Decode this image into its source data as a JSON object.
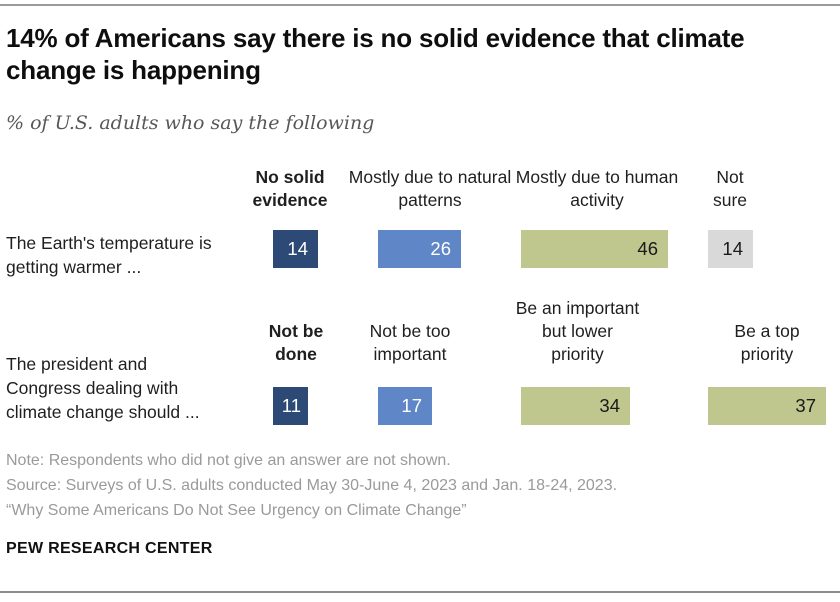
{
  "header": {
    "title": "14% of Americans say there is no solid evidence that climate change is happening",
    "subtitle": "% of U.S. adults who say the following"
  },
  "chart_data": {
    "type": "bar",
    "unit": "percent of U.S. adults",
    "layout_hint": "two independent horizontal bar rows, value labels inside bars, column headers above bars",
    "colors": {
      "dark_blue": "#2c4a75",
      "medium_blue": "#5f86c7",
      "olive": "#bfc68e",
      "gray": "#d9d9d9"
    },
    "rows": [
      {
        "label": "The Earth's temperature is getting warmer ...",
        "segments": [
          {
            "category": "No solid evidence",
            "value": 14,
            "color": "#2c4a75",
            "text_color": "#ffffff",
            "emphasized": true
          },
          {
            "category": "Mostly due to natural patterns",
            "value": 26,
            "color": "#5f86c7",
            "text_color": "#ffffff",
            "emphasized": false
          },
          {
            "category": "Mostly due to human activity",
            "value": 46,
            "color": "#bfc68e",
            "text_color": "#1a1a1a",
            "emphasized": false
          },
          {
            "category": "Not sure",
            "value": 14,
            "color": "#d9d9d9",
            "text_color": "#1a1a1a",
            "emphasized": false
          }
        ]
      },
      {
        "label": "The president and Congress dealing with climate change should ...",
        "segments": [
          {
            "category": "Not be done",
            "value": 11,
            "color": "#2c4a75",
            "text_color": "#ffffff",
            "emphasized": true
          },
          {
            "category": "Not be too important",
            "value": 17,
            "color": "#5f86c7",
            "text_color": "#ffffff",
            "emphasized": false
          },
          {
            "category": "Be an important but lower priority",
            "value": 34,
            "color": "#bfc68e",
            "text_color": "#1a1a1a",
            "emphasized": false
          },
          {
            "category": "Be a top priority",
            "value": 37,
            "color": "#bfc68e",
            "text_color": "#1a1a1a",
            "emphasized": false
          }
        ]
      }
    ]
  },
  "footer": {
    "note": "Note: Respondents who did not give an answer are not shown.",
    "source": "Source: Surveys of U.S. adults conducted May 30-June 4, 2023 and Jan. 18-24, 2023.",
    "report": "“Why Some Americans Do Not See Urgency on Climate Change”",
    "brand": "PEW RESEARCH CENTER"
  }
}
